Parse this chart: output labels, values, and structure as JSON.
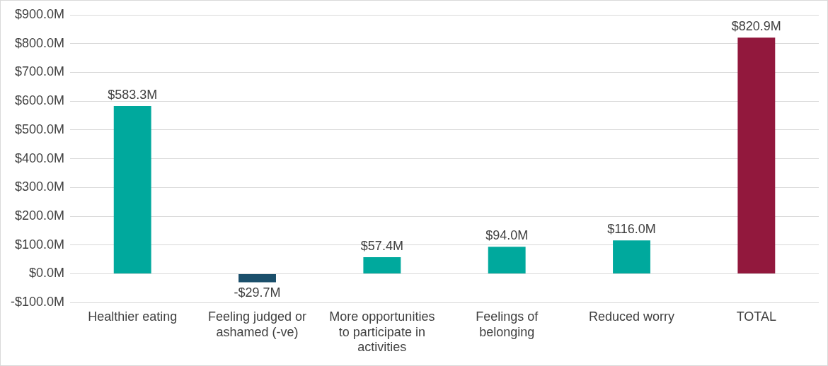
{
  "chart_data": {
    "type": "bar",
    "categories": [
      "Healthier eating",
      "Feeling judged or ashamed (-ve)",
      "More opportunities to participate in activities",
      "Feelings of belonging",
      "Reduced worry",
      "TOTAL"
    ],
    "values": [
      583.3,
      -29.7,
      57.4,
      94.0,
      116.0,
      820.9
    ],
    "colors": [
      "#00a99d",
      "#1b4f6b",
      "#00a99d",
      "#00a99d",
      "#00a99d",
      "#92183d"
    ],
    "value_labels": [
      "$583.3M",
      "-$29.7M",
      "$57.4M",
      "$94.0M",
      "$116.0M",
      "$820.9M"
    ],
    "ylim": [
      -100,
      900
    ],
    "yticks": [
      {
        "value": -100,
        "label": "-$100.0M"
      },
      {
        "value": 0,
        "label": "$0.0M"
      },
      {
        "value": 100,
        "label": "$100.0M"
      },
      {
        "value": 200,
        "label": "$200.0M"
      },
      {
        "value": 300,
        "label": "$300.0M"
      },
      {
        "value": 400,
        "label": "$400.0M"
      },
      {
        "value": 500,
        "label": "$500.0M"
      },
      {
        "value": 600,
        "label": "$600.0M"
      },
      {
        "value": 700,
        "label": "$700.0M"
      },
      {
        "value": 800,
        "label": "$800.0M"
      },
      {
        "value": 900,
        "label": "$900.0M"
      }
    ],
    "grid": "y",
    "legend": false
  }
}
